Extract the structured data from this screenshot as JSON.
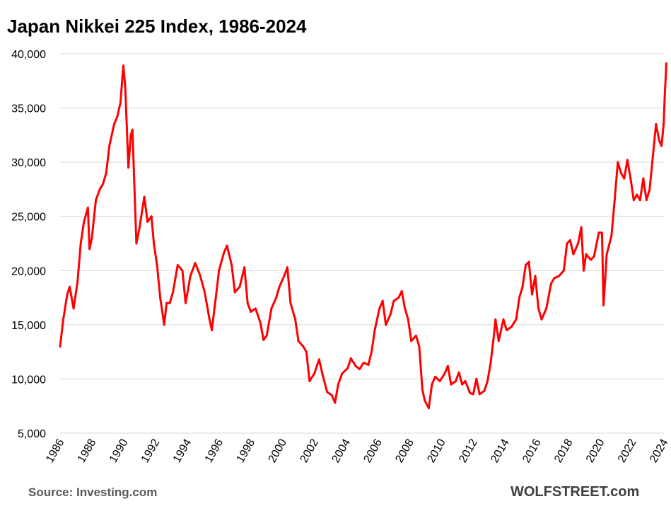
{
  "title": "Japan Nikkei 225 Index, 1986-2024",
  "source": "Source: Investing.com",
  "brand": "WOLFSTREET.com",
  "colors": {
    "line": "#ff0000",
    "grid": "#d9d9d9",
    "axis_text": "#000000"
  },
  "chart_data": {
    "type": "line",
    "title": "Japan Nikkei 225 Index, 1986-2024",
    "xlabel": "",
    "ylabel": "",
    "xlim": [
      1986,
      2024
    ],
    "ylim": [
      5000,
      40000
    ],
    "grid": "horizontal",
    "y_ticks": [
      5000,
      10000,
      15000,
      20000,
      25000,
      30000,
      35000,
      40000
    ],
    "y_tick_labels": [
      "5,000",
      "10,000",
      "15,000",
      "20,000",
      "25,000",
      "30,000",
      "35,000",
      "40,000"
    ],
    "x_ticks": [
      1986,
      1988,
      1990,
      1992,
      1994,
      1996,
      1998,
      2000,
      2002,
      2004,
      2006,
      2008,
      2010,
      2012,
      2014,
      2016,
      2018,
      2020,
      2022,
      2024
    ],
    "x_tick_labels": [
      "1986",
      "1988",
      "1990",
      "1992",
      "1994",
      "1996",
      "1998",
      "2000",
      "2002",
      "2004",
      "2006",
      "2008",
      "2010",
      "2012",
      "2014",
      "2016",
      "2018",
      "2020",
      "2022",
      "2024"
    ],
    "series": [
      {
        "points": [
          [
            1986.0,
            13000
          ],
          [
            1986.2,
            15500
          ],
          [
            1986.45,
            17800
          ],
          [
            1986.6,
            18500
          ],
          [
            1986.85,
            16500
          ],
          [
            1987.1,
            19000
          ],
          [
            1987.3,
            22500
          ],
          [
            1987.5,
            24500
          ],
          [
            1987.75,
            25800
          ],
          [
            1987.85,
            22000
          ],
          [
            1988.0,
            23000
          ],
          [
            1988.25,
            26500
          ],
          [
            1988.5,
            27500
          ],
          [
            1988.7,
            28000
          ],
          [
            1988.9,
            29000
          ],
          [
            1989.1,
            31500
          ],
          [
            1989.4,
            33500
          ],
          [
            1989.6,
            34200
          ],
          [
            1989.8,
            35500
          ],
          [
            1989.98,
            38900
          ],
          [
            1990.1,
            37000
          ],
          [
            1990.3,
            29500
          ],
          [
            1990.45,
            32500
          ],
          [
            1990.55,
            33000
          ],
          [
            1990.8,
            22500
          ],
          [
            1991.0,
            24000
          ],
          [
            1991.3,
            26800
          ],
          [
            1991.5,
            24500
          ],
          [
            1991.75,
            25000
          ],
          [
            1991.9,
            22500
          ],
          [
            1992.1,
            20500
          ],
          [
            1992.3,
            17500
          ],
          [
            1992.55,
            15000
          ],
          [
            1992.7,
            17000
          ],
          [
            1992.9,
            17000
          ],
          [
            1993.1,
            18000
          ],
          [
            1993.4,
            20500
          ],
          [
            1993.7,
            20000
          ],
          [
            1993.9,
            17000
          ],
          [
            1994.2,
            19500
          ],
          [
            1994.5,
            20700
          ],
          [
            1994.8,
            19600
          ],
          [
            1995.1,
            18000
          ],
          [
            1995.4,
            15500
          ],
          [
            1995.55,
            14500
          ],
          [
            1995.8,
            17500
          ],
          [
            1996.0,
            20000
          ],
          [
            1996.3,
            21600
          ],
          [
            1996.5,
            22300
          ],
          [
            1996.8,
            20500
          ],
          [
            1997.0,
            18000
          ],
          [
            1997.3,
            18500
          ],
          [
            1997.6,
            20300
          ],
          [
            1997.8,
            17000
          ],
          [
            1998.0,
            16200
          ],
          [
            1998.3,
            16500
          ],
          [
            1998.6,
            15200
          ],
          [
            1998.8,
            13600
          ],
          [
            1999.0,
            14000
          ],
          [
            1999.3,
            16500
          ],
          [
            1999.6,
            17500
          ],
          [
            1999.8,
            18500
          ],
          [
            2000.1,
            19500
          ],
          [
            2000.3,
            20300
          ],
          [
            2000.5,
            17000
          ],
          [
            2000.8,
            15500
          ],
          [
            2001.0,
            13500
          ],
          [
            2001.3,
            13000
          ],
          [
            2001.5,
            12500
          ],
          [
            2001.7,
            9800
          ],
          [
            2002.0,
            10500
          ],
          [
            2002.3,
            11800
          ],
          [
            2002.5,
            10500
          ],
          [
            2002.8,
            8800
          ],
          [
            2003.1,
            8500
          ],
          [
            2003.3,
            7800
          ],
          [
            2003.5,
            9500
          ],
          [
            2003.75,
            10500
          ],
          [
            2004.1,
            11000
          ],
          [
            2004.3,
            11900
          ],
          [
            2004.6,
            11200
          ],
          [
            2004.85,
            10900
          ],
          [
            2005.1,
            11500
          ],
          [
            2005.4,
            11300
          ],
          [
            2005.6,
            12500
          ],
          [
            2005.8,
            14500
          ],
          [
            2006.1,
            16500
          ],
          [
            2006.3,
            17200
          ],
          [
            2006.5,
            15000
          ],
          [
            2006.8,
            16000
          ],
          [
            2007.0,
            17200
          ],
          [
            2007.3,
            17500
          ],
          [
            2007.5,
            18100
          ],
          [
            2007.7,
            16500
          ],
          [
            2007.9,
            15500
          ],
          [
            2008.1,
            13500
          ],
          [
            2008.4,
            14000
          ],
          [
            2008.6,
            13000
          ],
          [
            2008.8,
            9000
          ],
          [
            2008.95,
            8000
          ],
          [
            2009.2,
            7300
          ],
          [
            2009.4,
            9500
          ],
          [
            2009.6,
            10200
          ],
          [
            2009.9,
            9800
          ],
          [
            2010.2,
            10500
          ],
          [
            2010.4,
            11200
          ],
          [
            2010.6,
            9500
          ],
          [
            2010.9,
            9800
          ],
          [
            2011.1,
            10600
          ],
          [
            2011.3,
            9500
          ],
          [
            2011.5,
            9800
          ],
          [
            2011.8,
            8700
          ],
          [
            2012.0,
            8600
          ],
          [
            2012.2,
            10000
          ],
          [
            2012.4,
            8600
          ],
          [
            2012.7,
            8900
          ],
          [
            2012.9,
            9800
          ],
          [
            2013.1,
            11500
          ],
          [
            2013.3,
            14000
          ],
          [
            2013.4,
            15500
          ],
          [
            2013.6,
            13500
          ],
          [
            2013.9,
            15500
          ],
          [
            2014.1,
            14500
          ],
          [
            2014.4,
            14800
          ],
          [
            2014.7,
            15500
          ],
          [
            2014.9,
            17500
          ],
          [
            2015.1,
            18500
          ],
          [
            2015.3,
            20500
          ],
          [
            2015.5,
            20800
          ],
          [
            2015.7,
            17800
          ],
          [
            2015.9,
            19500
          ],
          [
            2016.1,
            16500
          ],
          [
            2016.3,
            15500
          ],
          [
            2016.6,
            16500
          ],
          [
            2016.9,
            18800
          ],
          [
            2017.1,
            19300
          ],
          [
            2017.4,
            19500
          ],
          [
            2017.7,
            20000
          ],
          [
            2017.9,
            22500
          ],
          [
            2018.1,
            22800
          ],
          [
            2018.3,
            21500
          ],
          [
            2018.6,
            22500
          ],
          [
            2018.8,
            24000
          ],
          [
            2018.95,
            20000
          ],
          [
            2019.1,
            21500
          ],
          [
            2019.4,
            21000
          ],
          [
            2019.6,
            21300
          ],
          [
            2019.9,
            23500
          ],
          [
            2020.1,
            23500
          ],
          [
            2020.2,
            16800
          ],
          [
            2020.4,
            21500
          ],
          [
            2020.7,
            23200
          ],
          [
            2020.9,
            26500
          ],
          [
            2021.1,
            30000
          ],
          [
            2021.3,
            29000
          ],
          [
            2021.5,
            28500
          ],
          [
            2021.7,
            30200
          ],
          [
            2021.9,
            28500
          ],
          [
            2022.1,
            26500
          ],
          [
            2022.3,
            27000
          ],
          [
            2022.5,
            26500
          ],
          [
            2022.7,
            28500
          ],
          [
            2022.9,
            26500
          ],
          [
            2023.1,
            27500
          ],
          [
            2023.3,
            30500
          ],
          [
            2023.5,
            33500
          ],
          [
            2023.7,
            32000
          ],
          [
            2023.85,
            31500
          ],
          [
            2023.98,
            33500
          ],
          [
            2024.05,
            36000
          ],
          [
            2024.15,
            39100
          ]
        ]
      }
    ]
  }
}
